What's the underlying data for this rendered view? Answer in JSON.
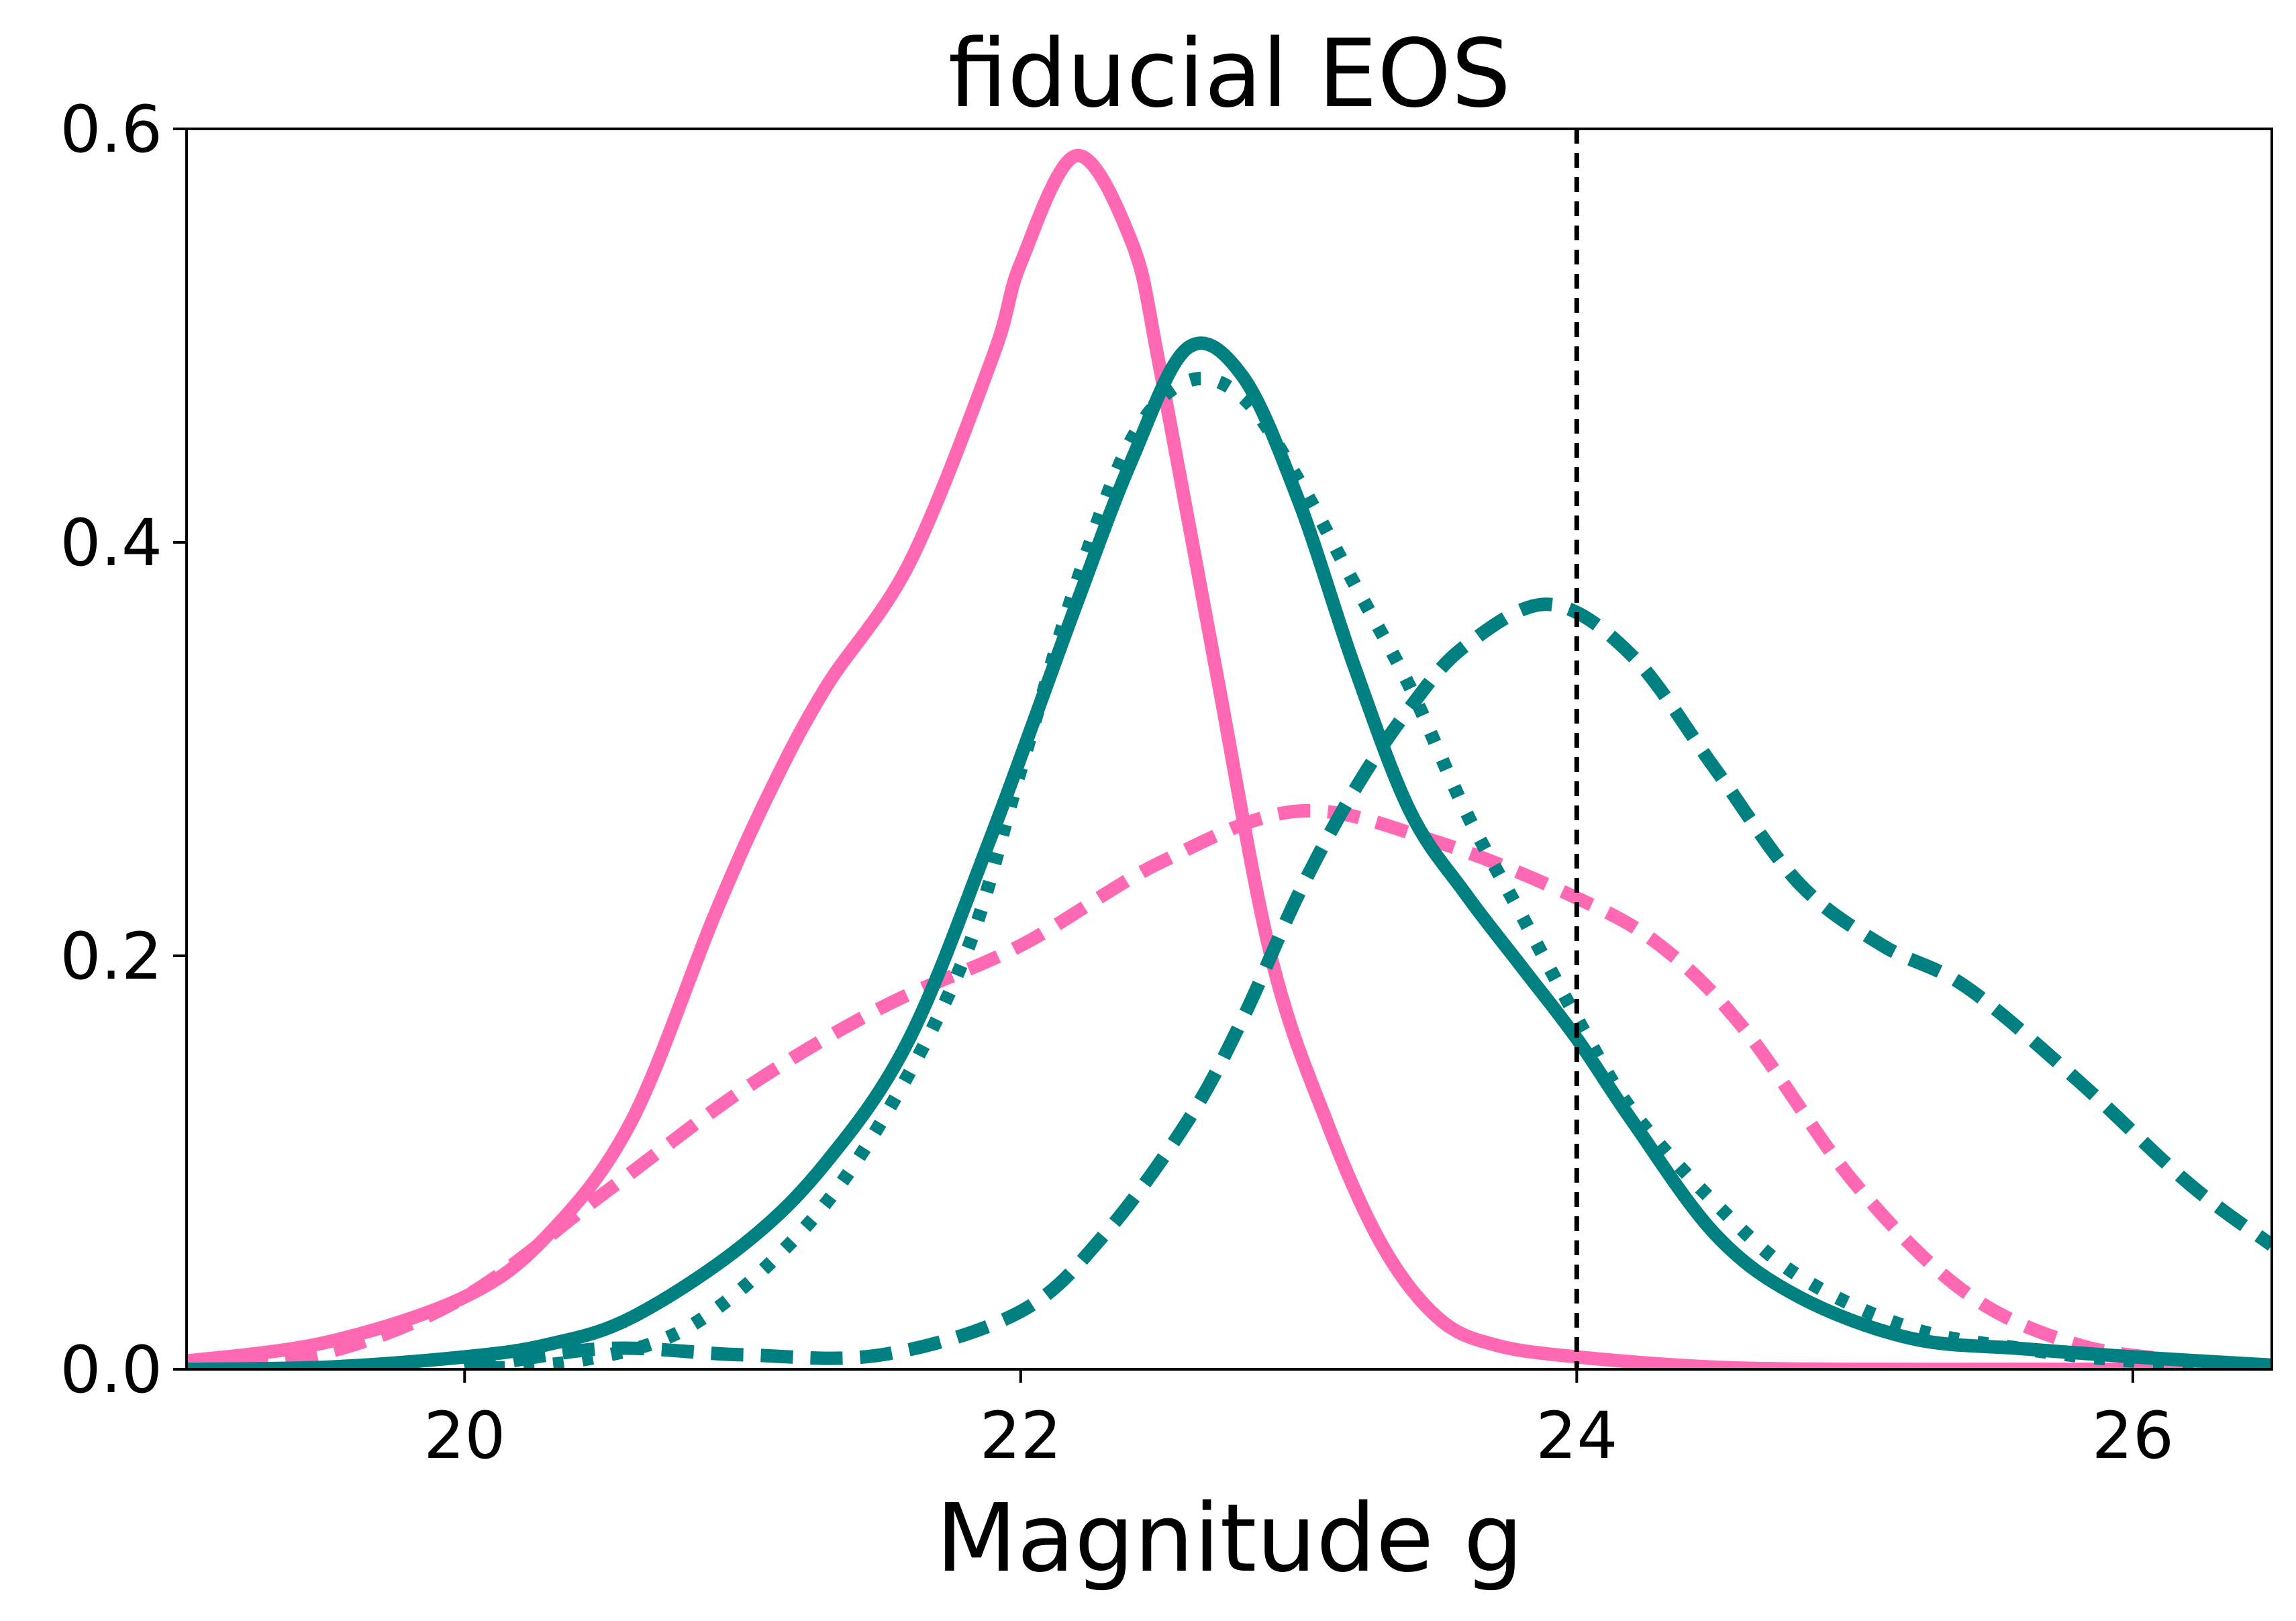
{
  "chart_data": {
    "type": "line",
    "title": "fiducial EOS",
    "xlabel": "Magnitude g",
    "ylabel": "",
    "xlim": [
      19.0,
      26.5
    ],
    "ylim": [
      0.0,
      0.6
    ],
    "xticks": [
      20,
      22,
      24,
      26
    ],
    "xtick_labels": [
      "20",
      "22",
      "24",
      "26"
    ],
    "yticks": [
      0.0,
      0.2,
      0.4,
      0.6
    ],
    "ytick_labels": [
      "0.0",
      "0.2",
      "0.4",
      "0.6"
    ],
    "grid": false,
    "vline": {
      "x": 24.0,
      "style": "dashed",
      "color": "#000000"
    },
    "series": [
      {
        "name": "pink-solid",
        "color": "#ff69b4",
        "style": "solid",
        "x": [
          19.0,
          19.5,
          20.0,
          20.3,
          20.6,
          20.9,
          21.1,
          21.3,
          21.6,
          21.9,
          22.0,
          22.2,
          22.4,
          22.5,
          22.7,
          22.9,
          23.1,
          23.3,
          23.5,
          23.7,
          24.0,
          24.5,
          25.0,
          25.5,
          26.0,
          26.5
        ],
        "values": [
          0.004,
          0.013,
          0.035,
          0.065,
          0.12,
          0.22,
          0.28,
          0.33,
          0.39,
          0.49,
          0.535,
          0.587,
          0.545,
          0.485,
          0.34,
          0.2,
          0.12,
          0.06,
          0.025,
          0.012,
          0.006,
          0.001,
          0.0,
          0.0,
          0.0,
          0.0
        ]
      },
      {
        "name": "pink-dashed",
        "color": "#ff69b4",
        "style": "dashed",
        "x": [
          19.0,
          19.5,
          20.0,
          20.5,
          21.0,
          21.5,
          22.0,
          22.5,
          23.0,
          23.5,
          24.0,
          24.3,
          24.6,
          25.0,
          25.4,
          25.8,
          26.2,
          26.5
        ],
        "values": [
          0.0,
          0.008,
          0.035,
          0.085,
          0.135,
          0.175,
          0.205,
          0.245,
          0.27,
          0.255,
          0.228,
          0.205,
          0.165,
          0.09,
          0.037,
          0.012,
          0.004,
          0.001
        ]
      },
      {
        "name": "teal-solid",
        "color": "#008080",
        "style": "solid",
        "x": [
          19.0,
          19.5,
          20.0,
          20.3,
          20.6,
          21.0,
          21.3,
          21.6,
          21.9,
          22.2,
          22.4,
          22.6,
          22.8,
          23.0,
          23.2,
          23.4,
          23.6,
          23.8,
          24.0,
          24.2,
          24.5,
          24.8,
          25.2,
          25.6,
          26.0,
          26.5
        ],
        "values": [
          0.0,
          0.001,
          0.006,
          0.012,
          0.025,
          0.06,
          0.1,
          0.16,
          0.26,
          0.37,
          0.44,
          0.494,
          0.48,
          0.42,
          0.34,
          0.27,
          0.23,
          0.195,
          0.16,
          0.12,
          0.065,
          0.035,
          0.015,
          0.01,
          0.006,
          0.002
        ]
      },
      {
        "name": "teal-dotted",
        "color": "#008080",
        "style": "dotted",
        "x": [
          20.0,
          20.4,
          20.8,
          21.2,
          21.5,
          21.8,
          22.0,
          22.2,
          22.4,
          22.6,
          22.8,
          23.0,
          23.2,
          23.4,
          23.6,
          23.8,
          24.0,
          24.2,
          24.5,
          24.8,
          25.2,
          25.6,
          26.0,
          26.5
        ],
        "values": [
          0.0,
          0.004,
          0.02,
          0.065,
          0.12,
          0.2,
          0.29,
          0.38,
          0.45,
          0.478,
          0.47,
          0.43,
          0.38,
          0.33,
          0.27,
          0.22,
          0.17,
          0.125,
          0.08,
          0.045,
          0.02,
          0.01,
          0.004,
          0.001
        ]
      },
      {
        "name": "teal-dashed",
        "color": "#008080",
        "style": "dashed",
        "x": [
          20.0,
          20.5,
          21.0,
          21.5,
          22.0,
          22.3,
          22.6,
          22.8,
          23.0,
          23.2,
          23.4,
          23.6,
          23.9,
          24.2,
          24.5,
          24.8,
          25.1,
          25.4,
          25.8,
          26.2,
          26.5
        ],
        "values": [
          0.0,
          0.01,
          0.007,
          0.007,
          0.028,
          0.065,
          0.12,
          0.17,
          0.23,
          0.28,
          0.32,
          0.35,
          0.37,
          0.345,
          0.29,
          0.235,
          0.205,
          0.185,
          0.14,
          0.09,
          0.06
        ]
      }
    ]
  }
}
